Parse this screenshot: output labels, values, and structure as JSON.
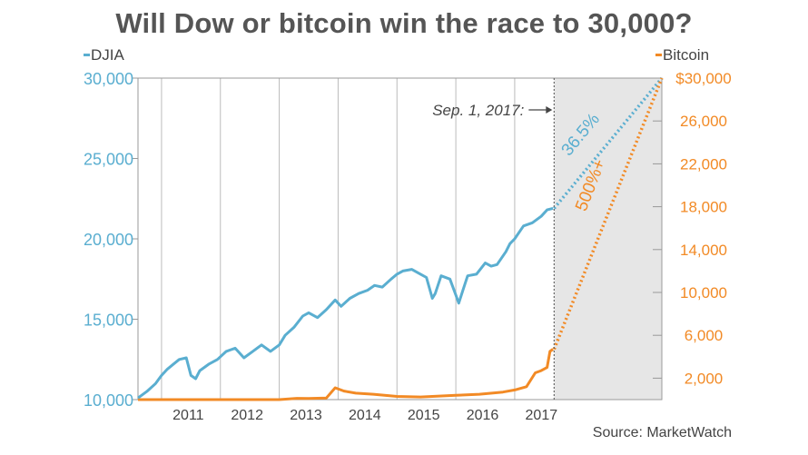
{
  "title": "Will Dow or bitcoin win the race to 30,000?",
  "source": "Source: MarketWatch",
  "colors": {
    "djia": "#5aaed0",
    "bitcoin": "#f28a25",
    "grid": "#bbbbbb",
    "projection_bg": "#e6e6e6",
    "text": "#444444"
  },
  "chart_data": {
    "type": "line",
    "title": "Will Dow or bitcoin win the race to 30,000?",
    "x_tick_labels": [
      "2011",
      "2012",
      "2013",
      "2014",
      "2015",
      "2016",
      "2017"
    ],
    "xlim": [
      2010.6,
      2019.5
    ],
    "left_axis": {
      "ticks": [
        10000,
        15000,
        20000,
        25000,
        30000
      ],
      "tick_labels": [
        "10,000",
        "15,000",
        "20,000",
        "25,000",
        "30,000"
      ],
      "ylim": [
        10000,
        30000
      ]
    },
    "right_axis": {
      "ticks": [
        2000,
        6000,
        10000,
        14000,
        18000,
        22000,
        26000,
        30000
      ],
      "tick_labels": [
        "2,000",
        "6,000",
        "10,000",
        "14,000",
        "18,000",
        "22,000",
        "26,000",
        "$30,000"
      ],
      "ylim": [
        0,
        30000
      ]
    },
    "legend": [
      {
        "name": "DJIA",
        "placement": "top-left"
      },
      {
        "name": "Bitcoin",
        "placement": "top-right"
      }
    ],
    "grid": "vertical",
    "series": [
      {
        "name": "DJIA",
        "axis": "left",
        "x": [
          2010.6,
          2010.75,
          2010.9,
          2011.0,
          2011.1,
          2011.2,
          2011.3,
          2011.42,
          2011.5,
          2011.58,
          2011.65,
          2011.8,
          2011.95,
          2012.1,
          2012.25,
          2012.4,
          2012.55,
          2012.7,
          2012.85,
          2013.0,
          2013.1,
          2013.25,
          2013.4,
          2013.5,
          2013.65,
          2013.8,
          2013.95,
          2014.05,
          2014.2,
          2014.35,
          2014.5,
          2014.62,
          2014.75,
          2014.9,
          2015.0,
          2015.1,
          2015.25,
          2015.4,
          2015.5,
          2015.6,
          2015.65,
          2015.75,
          2015.9,
          2016.0,
          2016.05,
          2016.12,
          2016.2,
          2016.35,
          2016.5,
          2016.6,
          2016.7,
          2016.85,
          2016.92,
          2017.0,
          2017.15,
          2017.3,
          2017.45,
          2017.55,
          2017.65
        ],
        "values": [
          10100,
          10500,
          11000,
          11500,
          11900,
          12200,
          12500,
          12600,
          11500,
          11300,
          11800,
          12200,
          12500,
          13000,
          13200,
          12600,
          13000,
          13400,
          13000,
          13400,
          14000,
          14500,
          15200,
          15400,
          15100,
          15600,
          16200,
          15800,
          16300,
          16600,
          16800,
          17100,
          17000,
          17500,
          17800,
          18000,
          18100,
          17800,
          17600,
          16300,
          16600,
          17700,
          17500,
          16500,
          16000,
          16800,
          17700,
          17800,
          18500,
          18300,
          18400,
          19200,
          19700,
          20000,
          20800,
          21000,
          21400,
          21800,
          21900
        ]
      },
      {
        "name": "Bitcoin",
        "axis": "right",
        "x": [
          2010.6,
          2011.0,
          2012.0,
          2013.0,
          2013.3,
          2013.5,
          2013.8,
          2013.95,
          2014.1,
          2014.3,
          2014.6,
          2015.0,
          2015.4,
          2015.8,
          2016.0,
          2016.4,
          2016.8,
          2017.0,
          2017.2,
          2017.35,
          2017.45,
          2017.55,
          2017.6,
          2017.65
        ],
        "values": [
          0,
          0,
          0,
          0,
          120,
          100,
          150,
          1100,
          800,
          600,
          500,
          300,
          250,
          350,
          400,
          500,
          700,
          900,
          1200,
          2500,
          2700,
          3000,
          4500,
          4700
        ]
      }
    ],
    "marker": {
      "label": "Sep. 1, 2017:",
      "x": 2017.67
    },
    "projections": [
      {
        "series": "DJIA",
        "label": "36.5%",
        "from": [
          2017.67,
          21900
        ],
        "to": [
          2019.5,
          30000
        ]
      },
      {
        "series": "Bitcoin",
        "label": "500%+",
        "from": [
          2017.67,
          4700
        ],
        "to": [
          2019.5,
          30000
        ]
      }
    ]
  }
}
